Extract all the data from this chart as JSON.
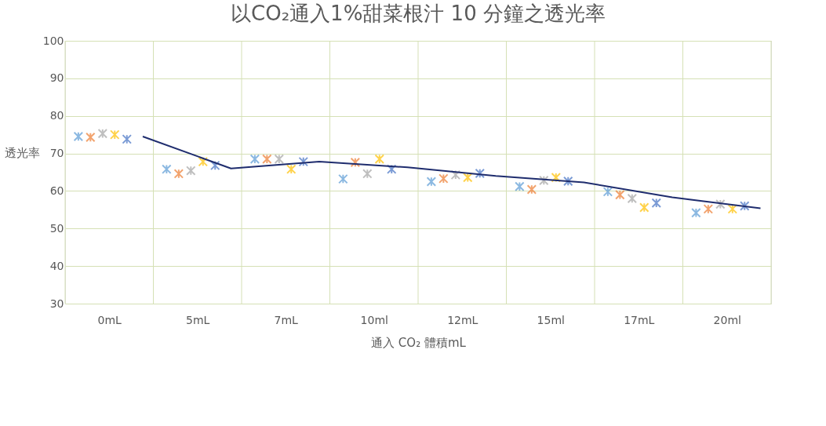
{
  "chart_data": {
    "type": "scatter",
    "title": "以CO₂通入1%甜菜根汁 10 分鐘之透光率",
    "xlabel": "通入 CO₂ 體積mL",
    "ylabel": "透光率",
    "categories": [
      "0mL",
      "5mL",
      "7mL",
      "10ml",
      "12mL",
      "15ml",
      "17mL",
      "20ml"
    ],
    "ylim": [
      30,
      100
    ],
    "yticks": [
      30,
      40,
      50,
      60,
      70,
      80,
      90,
      100
    ],
    "grid": true,
    "marker": "cross",
    "series": [
      {
        "color": "#5b9bd5",
        "values": [
          74.5,
          65.8,
          68.5,
          63.2,
          62.5,
          61.2,
          59.8,
          54.2
        ]
      },
      {
        "color": "#ed7d31",
        "values": [
          74.3,
          64.6,
          68.5,
          67.6,
          63.3,
          60.4,
          59.0,
          55.2
        ]
      },
      {
        "color": "#a5a5a5",
        "values": [
          75.3,
          65.4,
          68.5,
          64.6,
          64.3,
          62.8,
          58.0,
          56.5
        ]
      },
      {
        "color": "#ffc000",
        "values": [
          75.0,
          67.8,
          65.8,
          68.5,
          63.6,
          63.6,
          55.6,
          55.2
        ]
      },
      {
        "color": "#4472c4",
        "values": [
          73.8,
          66.8,
          67.8,
          65.8,
          64.7,
          62.6,
          56.8,
          56.0
        ]
      },
      {
        "type": "line",
        "color": "#1f2d6e",
        "line_style": "solid",
        "marker": "none",
        "values": [
          74.5,
          66.0,
          67.8,
          66.3,
          64.0,
          62.3,
          58.3,
          55.4
        ]
      }
    ]
  }
}
